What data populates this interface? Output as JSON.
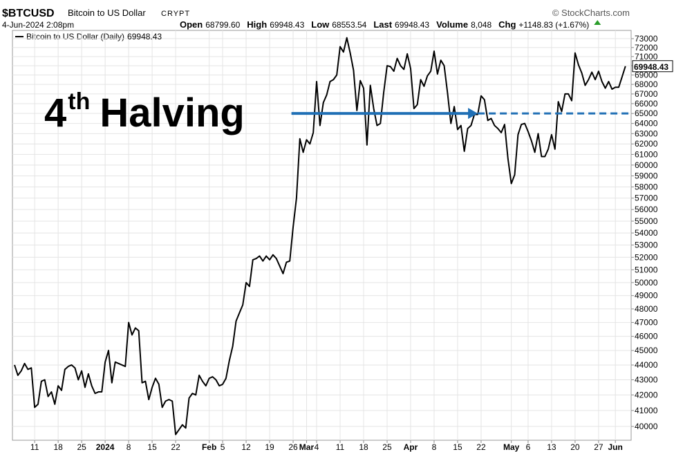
{
  "header": {
    "symbol": "$BTCUSD",
    "name": "Bitcoin to US Dollar",
    "exchange": "CRYPT",
    "source": "© StockCharts.com",
    "date": "4-Jun-2024 2:08pm",
    "stats": [
      [
        "Open",
        "68799.60"
      ],
      [
        "High",
        "69948.43"
      ],
      [
        "Low",
        "68553.54"
      ],
      [
        "Last",
        "69948.43"
      ],
      [
        "Volume",
        "8,048"
      ],
      [
        "Chg",
        "+1148.83 (+1.67%)"
      ]
    ]
  },
  "chart_data": {
    "type": "line",
    "log_scale": true,
    "grid": true,
    "annotation": {
      "number": "4",
      "sup": "th",
      "text": "Halving",
      "color": "#1f6fb5",
      "y": 65000,
      "arrow_x": [
        82.5,
        138
      ],
      "dash_x": [
        138,
        183.7
      ]
    },
    "series": [
      {
        "name": "Bitcoin to US Dollar (Daily)",
        "color": "#000000",
        "values": [
          44000,
          43300,
          43600,
          44100,
          43700,
          43800,
          41200,
          41400,
          42900,
          43000,
          41900,
          42200,
          41400,
          42600,
          42300,
          43700,
          43900,
          44000,
          43800,
          43000,
          43600,
          42500,
          43400,
          42600,
          42100,
          42200,
          42200,
          44200,
          45000,
          42800,
          44200,
          44100,
          44000,
          43900,
          47000,
          46100,
          46600,
          46400,
          42800,
          42900,
          41700,
          42500,
          43100,
          42700,
          41200,
          41600,
          41700,
          41600,
          39500,
          39800,
          40100,
          39900,
          41800,
          42100,
          42000,
          43300,
          42900,
          42600,
          43100,
          43200,
          43000,
          42600,
          42700,
          43100,
          44300,
          45300,
          47100,
          47700,
          48300,
          50000,
          49700,
          51800,
          51900,
          52100,
          51700,
          52100,
          51800,
          52200,
          51900,
          51300,
          50700,
          51600,
          51700,
          54500,
          57000,
          62500,
          61200,
          62400,
          62000,
          63100,
          68300,
          63800,
          66100,
          66900,
          68300,
          68500,
          69000,
          72100,
          71500,
          73100,
          71400,
          69500,
          65300,
          68400,
          67600,
          61900,
          67900,
          65500,
          63800,
          64000,
          67200,
          70000,
          69900,
          69400,
          70800,
          70000,
          69600,
          71300,
          69700,
          65500,
          65900,
          68500,
          67800,
          68900,
          69400,
          71600,
          69100,
          70600,
          70000,
          67100,
          64000,
          65700,
          63400,
          63800,
          61300,
          63500,
          63800,
          64900,
          64900,
          66800,
          66400,
          64300,
          64500,
          63800,
          63500,
          63100,
          63900,
          60600,
          58300,
          59100,
          62900,
          63900,
          64000,
          63200,
          62300,
          61200,
          63000,
          60800,
          60800,
          61500,
          62900,
          61500,
          66200,
          65200,
          67000,
          67000,
          66300,
          71400,
          70100,
          69200,
          67900,
          68500,
          69300,
          68500,
          69400,
          68300,
          67600,
          68300,
          67500,
          67700,
          67700,
          68800,
          69948.43
        ]
      }
    ],
    "xlim": [
      -0.62,
      183.7
    ],
    "xticks": [
      {
        "value": 6,
        "label": "11"
      },
      {
        "value": 13,
        "label": "18"
      },
      {
        "value": 20,
        "label": "25"
      },
      {
        "value": 27,
        "label": "2024"
      },
      {
        "value": 34,
        "label": "8"
      },
      {
        "value": 41,
        "label": "15"
      },
      {
        "value": 48,
        "label": "22"
      },
      {
        "value": 58,
        "label": "Feb"
      },
      {
        "value": 62,
        "label": "5"
      },
      {
        "value": 69,
        "label": "12"
      },
      {
        "value": 76,
        "label": "19"
      },
      {
        "value": 83,
        "label": "26"
      },
      {
        "value": 87,
        "label": "Mar"
      },
      {
        "value": 90,
        "label": "4"
      },
      {
        "value": 97,
        "label": "11"
      },
      {
        "value": 104,
        "label": "18"
      },
      {
        "value": 111,
        "label": "25"
      },
      {
        "value": 118,
        "label": "Apr"
      },
      {
        "value": 125,
        "label": "8"
      },
      {
        "value": 132,
        "label": "15"
      },
      {
        "value": 139,
        "label": "22"
      },
      {
        "value": 148,
        "label": "May"
      },
      {
        "value": 153,
        "label": "6"
      },
      {
        "value": 160,
        "label": "13"
      },
      {
        "value": 167,
        "label": "20"
      },
      {
        "value": 174,
        "label": "27"
      },
      {
        "value": 179,
        "label": "Jun"
      }
    ],
    "ylim": [
      39150,
      73940
    ],
    "yticks": [
      40000,
      41000,
      42000,
      43000,
      44000,
      45000,
      46000,
      47000,
      48000,
      49000,
      50000,
      51000,
      52000,
      53000,
      54000,
      55000,
      56000,
      57000,
      58000,
      59000,
      60000,
      61000,
      62000,
      63000,
      64000,
      65000,
      66000,
      67000,
      68000,
      69000,
      70000,
      71000,
      72000,
      73000
    ]
  }
}
